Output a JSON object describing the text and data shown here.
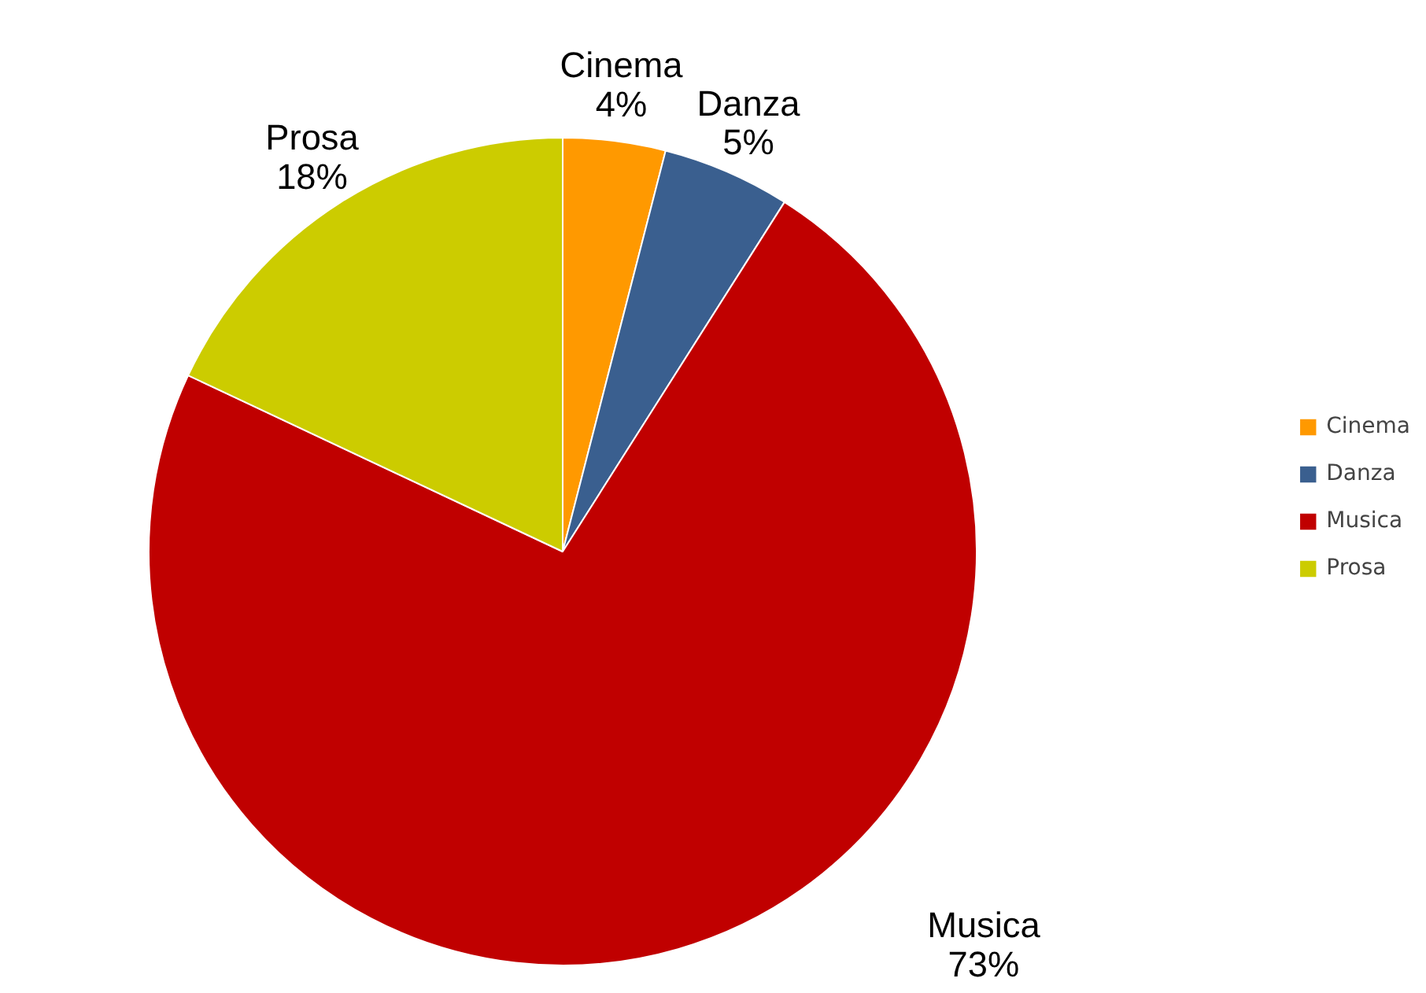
{
  "chart_data": {
    "type": "pie",
    "categories": [
      "Cinema",
      "Danza",
      "Musica",
      "Prosa"
    ],
    "values": [
      4,
      5,
      73,
      18
    ],
    "value_labels": [
      "4%",
      "5%",
      "73%",
      "18%"
    ],
    "colors": [
      "#ff9900",
      "#3a5f8f",
      "#c00000",
      "#cccc00"
    ],
    "legend": "right"
  }
}
